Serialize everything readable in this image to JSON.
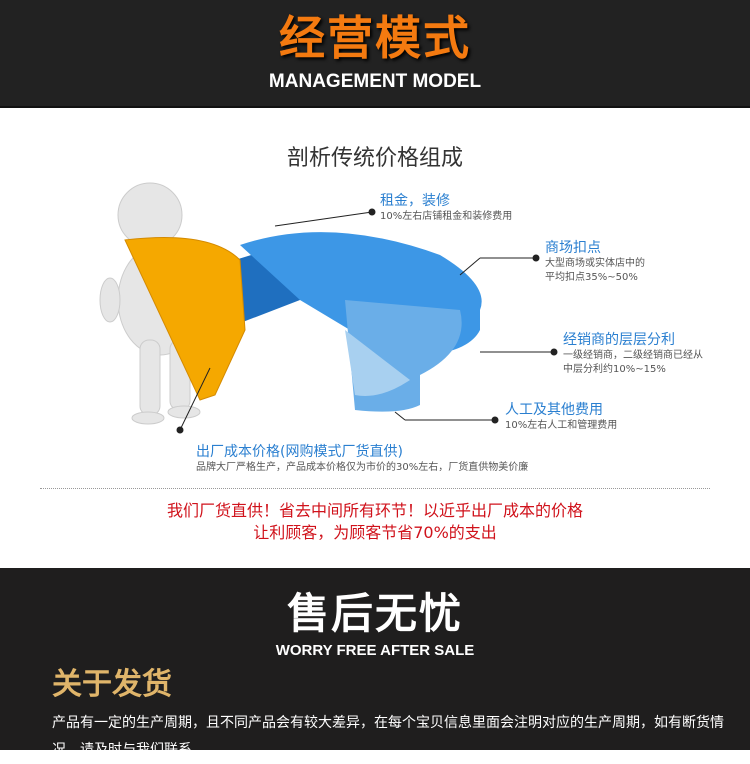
{
  "header": {
    "title": "经营模式",
    "subtitle": "MANAGEMENT MODEL"
  },
  "chart": {
    "title": "剖析传统价格组成",
    "labels": [
      {
        "heading": "租金，装修",
        "desc": [
          "10%左右店铺租金和装修费用"
        ]
      },
      {
        "heading": "商场扣点",
        "desc": [
          "大型商场或实体店中的",
          "平均扣点35%~50%"
        ]
      },
      {
        "heading": "经销商的层层分利",
        "desc": [
          "一级经销商，二级经销商已经从",
          "中层分利约10%~15%"
        ]
      },
      {
        "heading": "人工及其他费用",
        "desc": [
          "10%左右人工和管理费用"
        ]
      },
      {
        "heading": "出厂成本价格(网购模式厂货直供)",
        "desc": [
          "品牌大厂严格生产，产品成本价格仅为市价的30%左右，厂货直供物美价廉"
        ]
      }
    ],
    "colors": {
      "highlight": "#f5a800",
      "blue": "#2e8fe0",
      "light_blue": "#8cc4ee"
    }
  },
  "slogan": [
    "我们厂货直供！省去中间所有环节！以近乎出厂成本的价格",
    "让利顾客，为顾客节省70%的支出"
  ],
  "after_sale": {
    "title": "售后无忧",
    "subtitle": "WORRY FREE AFTER SALE"
  },
  "shipping": {
    "title": "关于发货",
    "text": "产品有一定的生产周期，且不同产品会有较大差异，在每个宝贝信息里面会注明对应的生产周期，如有断货情况，请及时与我们联系"
  }
}
